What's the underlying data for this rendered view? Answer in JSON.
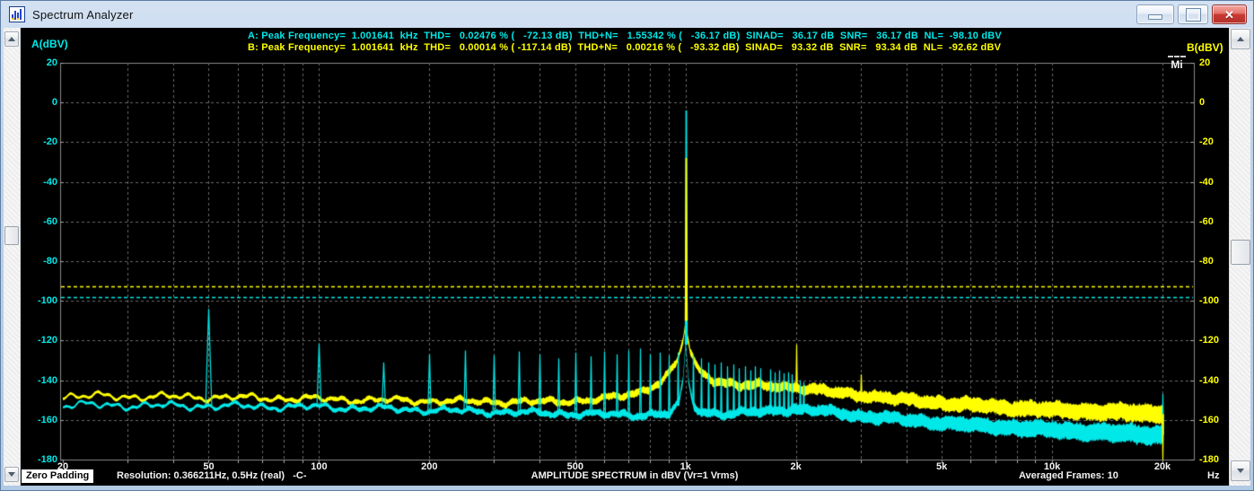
{
  "window": {
    "title": "Spectrum Analyzer",
    "close_label": "✕"
  },
  "info": {
    "line_a": "A: Peak Frequency=  1.001641  kHz  THD=   0.02476 % (   -72.13 dB)  THD+N=   1.55342 % (   -36.17 dB)  SINAD=   36.17 dB  SNR=   36.17 dB  NL=  -98.10 dBV",
    "line_b": "B: Peak Frequency=  1.001641  kHz  THD=   0.00014 % ( -117.14 dB)  THD+N=   0.00216 % (   -93.32 dB)  SINAD=   93.32 dB  SNR=   93.34 dB  NL=  -92.62 dBV"
  },
  "axes": {
    "left_corner_label": "A(dBV)",
    "right_corner_label": "B(dBV)",
    "x_unit": "Hz"
  },
  "marker": {
    "label": "Mi"
  },
  "status": {
    "zero_padding": "Zero Padding",
    "resolution": "Resolution: 0.366211Hz, 0.5Hz (real)   -C-",
    "center_title": "AMPLITUDE SPECTRUM in dBV (Vr=1 Vrms)",
    "averaged_frames": "Averaged Frames: 10"
  },
  "chart_data": {
    "type": "line",
    "title": "AMPLITUDE SPECTRUM in dBV (Vr=1 Vrms)",
    "x_axis": {
      "scale": "log",
      "min": 20,
      "max": 20000,
      "unit": "Hz",
      "ticks": [
        {
          "f": 20,
          "label": "20"
        },
        {
          "f": 50,
          "label": "50"
        },
        {
          "f": 100,
          "label": "100"
        },
        {
          "f": 200,
          "label": "200"
        },
        {
          "f": 500,
          "label": "500"
        },
        {
          "f": 1000,
          "label": "1k"
        },
        {
          "f": 2000,
          "label": "2k"
        },
        {
          "f": 5000,
          "label": "5k"
        },
        {
          "f": 10000,
          "label": "10k"
        },
        {
          "f": 20000,
          "label": "20k"
        }
      ]
    },
    "y_axis": {
      "min": -180,
      "max": 20,
      "step": 20,
      "unit": "dBV",
      "tick_values": [
        20,
        0,
        -20,
        -40,
        -60,
        -80,
        -100,
        -120,
        -140,
        -160,
        -180
      ]
    },
    "grid": {
      "style": "dashed",
      "color": "#6a6a6a"
    },
    "peak": {
      "frequency_khz": 1.001641,
      "level_dbv": -4
    },
    "noise_lines": [
      {
        "series": "A",
        "level_dbv": -98.1,
        "color": "#00e8e8"
      },
      {
        "series": "B",
        "level_dbv": -92.62,
        "color": "#ffff00"
      }
    ],
    "series": [
      {
        "name": "B",
        "color": "#ffff00",
        "seed": 7,
        "floor": [
          [
            20,
            -148
          ],
          [
            50,
            -148.5
          ],
          [
            100,
            -149.5
          ],
          [
            200,
            -150.5
          ],
          [
            400,
            -151
          ],
          [
            550,
            -150
          ],
          [
            650,
            -148.5
          ],
          [
            750,
            -146
          ],
          [
            850,
            -141
          ],
          [
            900,
            -137
          ],
          [
            950,
            -130
          ],
          [
            980,
            -122
          ],
          [
            995,
            -114
          ],
          [
            1001.6,
            -110
          ],
          [
            1010,
            -117
          ],
          [
            1030,
            -126
          ],
          [
            1060,
            -132
          ],
          [
            1100,
            -136
          ],
          [
            1200,
            -140
          ],
          [
            1400,
            -142.5
          ],
          [
            1700,
            -143
          ],
          [
            2000,
            -143.5
          ],
          [
            2500,
            -146
          ],
          [
            3000,
            -147.5
          ],
          [
            4000,
            -150
          ],
          [
            5000,
            -151.5
          ],
          [
            7000,
            -153.5
          ],
          [
            10000,
            -155
          ],
          [
            14000,
            -156
          ],
          [
            20000,
            -157
          ]
        ],
        "thickness": [
          [
            20,
            1
          ],
          [
            200,
            1.5
          ],
          [
            1000,
            2.5
          ],
          [
            2000,
            3.5
          ],
          [
            5000,
            5
          ],
          [
            10000,
            6
          ],
          [
            20000,
            7
          ]
        ],
        "spikes": [
          [
            1001.641,
            -28
          ],
          [
            2000,
            -122
          ],
          [
            3000,
            -137
          ],
          [
            20000,
            -180
          ]
        ]
      },
      {
        "name": "A",
        "color": "#00e8e8",
        "seed": 13,
        "floor": [
          [
            20,
            -152.5
          ],
          [
            50,
            -153
          ],
          [
            100,
            -153.5
          ],
          [
            200,
            -155
          ],
          [
            300,
            -156
          ],
          [
            500,
            -157
          ],
          [
            700,
            -157.5
          ],
          [
            900,
            -157
          ],
          [
            960,
            -152
          ],
          [
            985,
            -140
          ],
          [
            995,
            -128
          ],
          [
            1001.6,
            -122
          ],
          [
            1008,
            -130
          ],
          [
            1020,
            -142
          ],
          [
            1050,
            -152
          ],
          [
            1100,
            -156
          ],
          [
            1300,
            -157
          ],
          [
            1600,
            -156
          ],
          [
            2000,
            -154.5
          ],
          [
            2500,
            -156
          ],
          [
            3000,
            -158
          ],
          [
            4000,
            -160
          ],
          [
            5000,
            -161.5
          ],
          [
            7000,
            -163.5
          ],
          [
            10000,
            -165
          ],
          [
            14000,
            -166.5
          ],
          [
            20000,
            -167.5
          ]
        ],
        "thickness": [
          [
            20,
            1
          ],
          [
            200,
            1.5
          ],
          [
            1000,
            2.5
          ],
          [
            2000,
            3.5
          ],
          [
            5000,
            5
          ],
          [
            10000,
            6.5
          ],
          [
            20000,
            7.5
          ]
        ],
        "spikes": [
          [
            50,
            -104
          ],
          [
            100,
            -121.5
          ],
          [
            150,
            -131
          ],
          [
            200,
            -127
          ],
          [
            250,
            -125
          ],
          [
            300,
            -127.5
          ],
          [
            350,
            -125.5
          ],
          [
            400,
            -127
          ],
          [
            450,
            -129
          ],
          [
            500,
            -126
          ],
          [
            550,
            -128
          ],
          [
            600,
            -125.5
          ],
          [
            650,
            -127
          ],
          [
            700,
            -125
          ],
          [
            750,
            -124
          ],
          [
            800,
            -127
          ],
          [
            850,
            -126
          ],
          [
            900,
            -127.5
          ],
          [
            950,
            -126
          ],
          [
            1001.641,
            -4
          ],
          [
            1050,
            -127
          ],
          [
            1100,
            -129
          ],
          [
            1150,
            -131
          ],
          [
            1200,
            -132
          ],
          [
            1250,
            -131
          ],
          [
            1300,
            -133
          ],
          [
            1350,
            -132
          ],
          [
            1400,
            -134
          ],
          [
            1450,
            -133
          ],
          [
            1500,
            -135
          ],
          [
            1550,
            -133
          ],
          [
            1600,
            -134
          ],
          [
            1700,
            -134.5
          ],
          [
            1750,
            -136
          ],
          [
            1800,
            -135
          ],
          [
            1850,
            -136.5
          ],
          [
            1900,
            -136
          ],
          [
            1950,
            -137
          ],
          [
            2050,
            -140
          ],
          [
            2100,
            -141
          ],
          [
            20000,
            -147
          ]
        ]
      }
    ]
  }
}
